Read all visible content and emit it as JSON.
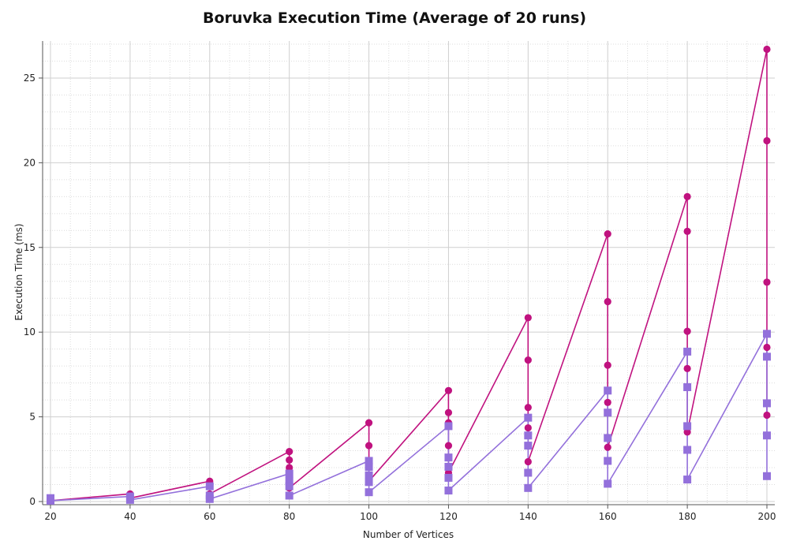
{
  "chart_data": {
    "type": "line",
    "title": "Boruvka Execution Time (Average of 20 runs)",
    "xlabel": "Number of Vertices",
    "ylabel": "Execution Time (ms)",
    "xlim": [
      20,
      200
    ],
    "ylim": [
      0,
      27
    ],
    "x_ticks": [
      20,
      40,
      60,
      80,
      100,
      120,
      140,
      160,
      180,
      200
    ],
    "y_ticks": [
      0,
      5,
      10,
      15,
      20,
      25
    ],
    "grid": true,
    "series": [
      {
        "color": "#c0127f",
        "marker": "circle",
        "points": [
          [
            20,
            0.1
          ],
          [
            20,
            0.05
          ],
          [
            40,
            0.45
          ],
          [
            40,
            0.2
          ],
          [
            60,
            1.2
          ],
          [
            60,
            0.45
          ],
          [
            80,
            2.95
          ],
          [
            80,
            2.45
          ],
          [
            80,
            2.0
          ],
          [
            80,
            0.8
          ],
          [
            100,
            4.65
          ],
          [
            100,
            3.3
          ],
          [
            100,
            1.2
          ],
          [
            120,
            6.55
          ],
          [
            120,
            5.25
          ],
          [
            120,
            4.65
          ],
          [
            120,
            3.3
          ],
          [
            120,
            1.7
          ],
          [
            140,
            10.85
          ],
          [
            140,
            8.35
          ],
          [
            140,
            5.55
          ],
          [
            140,
            4.35
          ],
          [
            140,
            2.35
          ],
          [
            160,
            15.8
          ],
          [
            160,
            11.8
          ],
          [
            160,
            8.05
          ],
          [
            160,
            5.85
          ],
          [
            160,
            3.2
          ],
          [
            180,
            18.0
          ],
          [
            180,
            15.95
          ],
          [
            180,
            10.05
          ],
          [
            180,
            7.85
          ],
          [
            180,
            4.1
          ],
          [
            200,
            26.7
          ],
          [
            200,
            21.3
          ],
          [
            200,
            12.95
          ],
          [
            200,
            9.1
          ],
          [
            200,
            5.1
          ]
        ]
      },
      {
        "color": "#9370db",
        "marker": "square",
        "points": [
          [
            20,
            0.2
          ],
          [
            20,
            0.05
          ],
          [
            40,
            0.3
          ],
          [
            40,
            0.1
          ],
          [
            60,
            0.9
          ],
          [
            60,
            0.35
          ],
          [
            60,
            0.15
          ],
          [
            80,
            1.65
          ],
          [
            80,
            1.2
          ],
          [
            80,
            0.9
          ],
          [
            80,
            0.35
          ],
          [
            100,
            2.4
          ],
          [
            100,
            2.05
          ],
          [
            100,
            1.55
          ],
          [
            100,
            1.15
          ],
          [
            100,
            0.55
          ],
          [
            120,
            4.45
          ],
          [
            120,
            2.6
          ],
          [
            120,
            2.05
          ],
          [
            120,
            1.4
          ],
          [
            120,
            0.65
          ],
          [
            140,
            4.95
          ],
          [
            140,
            3.9
          ],
          [
            140,
            3.3
          ],
          [
            140,
            1.7
          ],
          [
            140,
            0.8
          ],
          [
            160,
            6.55
          ],
          [
            160,
            5.25
          ],
          [
            160,
            3.75
          ],
          [
            160,
            2.4
          ],
          [
            160,
            1.05
          ],
          [
            180,
            8.85
          ],
          [
            180,
            6.75
          ],
          [
            180,
            4.45
          ],
          [
            180,
            3.05
          ],
          [
            180,
            1.3
          ],
          [
            200,
            9.9
          ],
          [
            200,
            8.55
          ],
          [
            200,
            5.8
          ],
          [
            200,
            3.9
          ],
          [
            200,
            1.5
          ]
        ]
      }
    ]
  }
}
